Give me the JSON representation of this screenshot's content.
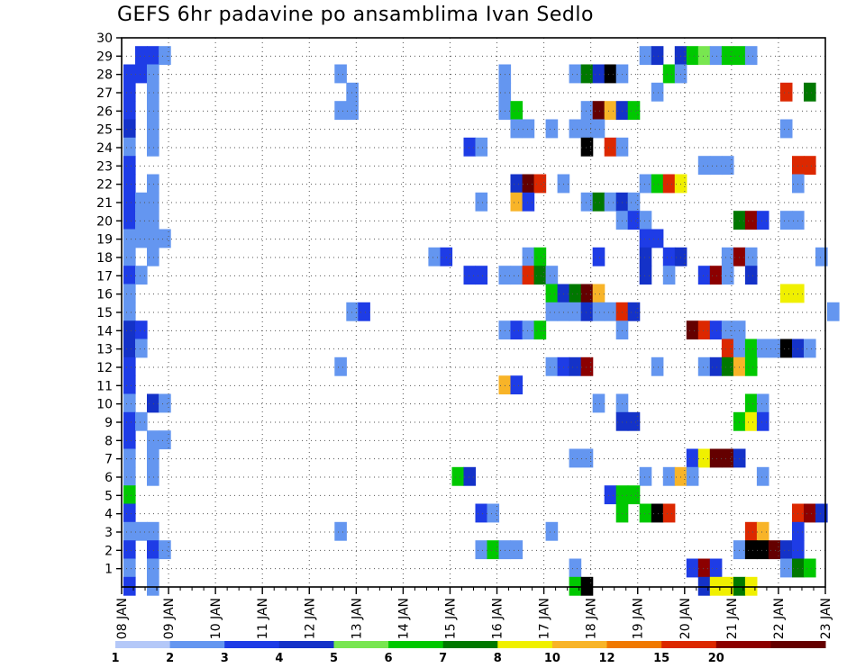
{
  "chart_data": {
    "type": "heatmap",
    "title": "GEFS 6hr padavine po ansamblima Ivan Sedlo",
    "x_tick_labels": [
      "08 JAN",
      "09 JAN",
      "10 JAN",
      "11 JAN",
      "12 JAN",
      "13 JAN",
      "14 JAN",
      "15 JAN",
      "16 JAN",
      "17 JAN",
      "18 JAN",
      "19 JAN",
      "20 JAN",
      "21 JAN",
      "22 JAN",
      "23 JAN"
    ],
    "y_tick_labels": [
      "1",
      "2",
      "3",
      "4",
      "5",
      "6",
      "7",
      "8",
      "9",
      "10",
      "11",
      "12",
      "13",
      "14",
      "15",
      "16",
      "17",
      "18",
      "19",
      "20",
      "21",
      "22",
      "23",
      "24",
      "25",
      "26",
      "27",
      "28",
      "29",
      "30"
    ],
    "ylim": [
      0,
      30
    ],
    "grid": "dotted",
    "colorbar": {
      "labels": [
        "1",
        "2",
        "3",
        "4",
        "5",
        "6",
        "7",
        "8",
        "10",
        "12",
        "15",
        "20"
      ],
      "colors": [
        "#b4c8f8",
        "#6496f0",
        "#1e3ce6",
        "#1432c8",
        "#78e650",
        "#00c800",
        "#007800",
        "#f0f000",
        "#f8b428",
        "#f07800",
        "#dc2800",
        "#8c0000",
        "#640000"
      ]
    },
    "x_unit": "days since 08 JAN 00Z (6-hourly steps)",
    "cells": [
      [
        30,
        8.25,
        2
      ],
      [
        30,
        8.5,
        2
      ],
      [
        30,
        8.75,
        1
      ],
      [
        30,
        19.0,
        1
      ],
      [
        30,
        19.25,
        3
      ],
      [
        30,
        19.75,
        3
      ],
      [
        30,
        20.0,
        5
      ],
      [
        30,
        20.25,
        4
      ],
      [
        30,
        20.5,
        1
      ],
      [
        30,
        20.75,
        5
      ],
      [
        30,
        21.0,
        5
      ],
      [
        30,
        21.25,
        1
      ],
      [
        29,
        8.0,
        2
      ],
      [
        29,
        8.25,
        2
      ],
      [
        29,
        8.5,
        1
      ],
      [
        29,
        12.5,
        1
      ],
      [
        29,
        16.0,
        1
      ],
      [
        29,
        17.5,
        1
      ],
      [
        29,
        17.75,
        6
      ],
      [
        29,
        18.0,
        3
      ],
      [
        29,
        18.25,
        13
      ],
      [
        29,
        18.5,
        1
      ],
      [
        29,
        19.5,
        5
      ],
      [
        29,
        19.75,
        1
      ],
      [
        28,
        8.0,
        2
      ],
      [
        28,
        8.5,
        1
      ],
      [
        28,
        12.75,
        1
      ],
      [
        28,
        16.0,
        1
      ],
      [
        28,
        19.25,
        1
      ],
      [
        28,
        22.0,
        10
      ],
      [
        28,
        22.5,
        6
      ],
      [
        27,
        8.0,
        2
      ],
      [
        27,
        8.5,
        1
      ],
      [
        27,
        12.5,
        1
      ],
      [
        27,
        12.75,
        1
      ],
      [
        27,
        16.0,
        1
      ],
      [
        27,
        16.25,
        5
      ],
      [
        27,
        17.75,
        1
      ],
      [
        27,
        18.0,
        12
      ],
      [
        27,
        18.25,
        8
      ],
      [
        27,
        18.5,
        3
      ],
      [
        27,
        18.75,
        5
      ],
      [
        26,
        8.0,
        3
      ],
      [
        26,
        8.5,
        1
      ],
      [
        26,
        16.25,
        1
      ],
      [
        26,
        16.5,
        1
      ],
      [
        26,
        17.0,
        1
      ],
      [
        26,
        17.5,
        1
      ],
      [
        26,
        17.75,
        1
      ],
      [
        26,
        18.0,
        1
      ],
      [
        26,
        22.0,
        1
      ],
      [
        25,
        8.0,
        1
      ],
      [
        25,
        8.5,
        1
      ],
      [
        25,
        15.25,
        2
      ],
      [
        25,
        15.5,
        1
      ],
      [
        25,
        17.75,
        13
      ],
      [
        25,
        18.25,
        10
      ],
      [
        25,
        18.5,
        1
      ],
      [
        24,
        8.0,
        2
      ],
      [
        24,
        20.25,
        1
      ],
      [
        24,
        20.5,
        1
      ],
      [
        24,
        20.75,
        1
      ],
      [
        24,
        22.25,
        10
      ],
      [
        24,
        22.5,
        10
      ],
      [
        23,
        8.0,
        2
      ],
      [
        23,
        8.5,
        1
      ],
      [
        23,
        16.25,
        3
      ],
      [
        23,
        16.5,
        12
      ],
      [
        23,
        16.75,
        10
      ],
      [
        23,
        17.25,
        1
      ],
      [
        23,
        19.0,
        1
      ],
      [
        23,
        19.25,
        5
      ],
      [
        23,
        19.5,
        10
      ],
      [
        23,
        19.75,
        7
      ],
      [
        23,
        22.25,
        1
      ],
      [
        22,
        8.0,
        2
      ],
      [
        22,
        8.25,
        1
      ],
      [
        22,
        8.5,
        1
      ],
      [
        22,
        15.5,
        1
      ],
      [
        22,
        16.25,
        8
      ],
      [
        22,
        16.5,
        2
      ],
      [
        22,
        17.75,
        1
      ],
      [
        22,
        18.0,
        6
      ],
      [
        22,
        18.25,
        1
      ],
      [
        22,
        18.5,
        3
      ],
      [
        22,
        18.75,
        1
      ],
      [
        21,
        8.0,
        2
      ],
      [
        21,
        8.25,
        1
      ],
      [
        21,
        8.5,
        1
      ],
      [
        21,
        18.5,
        1
      ],
      [
        21,
        18.75,
        2
      ],
      [
        21,
        19.0,
        1
      ],
      [
        21,
        21.0,
        6
      ],
      [
        21,
        21.25,
        11
      ],
      [
        21,
        21.5,
        2
      ],
      [
        21,
        22.0,
        1
      ],
      [
        21,
        22.25,
        1
      ],
      [
        20,
        8.0,
        1
      ],
      [
        20,
        8.25,
        1
      ],
      [
        20,
        8.5,
        1
      ],
      [
        20,
        8.75,
        1
      ],
      [
        20,
        19.0,
        2
      ],
      [
        20,
        19.25,
        2
      ],
      [
        19,
        8.0,
        1
      ],
      [
        19,
        8.5,
        1
      ],
      [
        19,
        14.5,
        1
      ],
      [
        19,
        14.75,
        2
      ],
      [
        19,
        16.5,
        1
      ],
      [
        19,
        16.75,
        5
      ],
      [
        19,
        18.0,
        2
      ],
      [
        19,
        19.0,
        3
      ],
      [
        19,
        19.5,
        2
      ],
      [
        19,
        19.75,
        3
      ],
      [
        19,
        20.75,
        1
      ],
      [
        19,
        21.0,
        11
      ],
      [
        19,
        21.25,
        1
      ],
      [
        19,
        22.75,
        1
      ],
      [
        18,
        8.0,
        2
      ],
      [
        18,
        8.25,
        1
      ],
      [
        18,
        15.25,
        2
      ],
      [
        18,
        15.5,
        2
      ],
      [
        18,
        16.0,
        1
      ],
      [
        18,
        16.25,
        1
      ],
      [
        18,
        16.5,
        10
      ],
      [
        18,
        16.75,
        6
      ],
      [
        18,
        17.0,
        1
      ],
      [
        18,
        19.0,
        3
      ],
      [
        18,
        19.5,
        1
      ],
      [
        18,
        20.25,
        2
      ],
      [
        18,
        20.5,
        11
      ],
      [
        18,
        20.75,
        1
      ],
      [
        18,
        21.25,
        3
      ],
      [
        17,
        8.0,
        1
      ],
      [
        17,
        17.0,
        5
      ],
      [
        17,
        17.25,
        3
      ],
      [
        17,
        17.5,
        6
      ],
      [
        17,
        17.75,
        12
      ],
      [
        17,
        18.0,
        8
      ],
      [
        17,
        22.0,
        7
      ],
      [
        17,
        22.25,
        7
      ],
      [
        16,
        8.0,
        1
      ],
      [
        16,
        12.75,
        1
      ],
      [
        16,
        13.0,
        2
      ],
      [
        16,
        17.0,
        1
      ],
      [
        16,
        17.25,
        1
      ],
      [
        16,
        17.5,
        1
      ],
      [
        16,
        17.75,
        3
      ],
      [
        16,
        18.0,
        1
      ],
      [
        16,
        18.25,
        1
      ],
      [
        16,
        18.5,
        10
      ],
      [
        16,
        18.75,
        3
      ],
      [
        16,
        23.0,
        1
      ],
      [
        15,
        8.0,
        3
      ],
      [
        15,
        8.25,
        2
      ],
      [
        15,
        16.0,
        1
      ],
      [
        15,
        16.25,
        2
      ],
      [
        15,
        16.5,
        1
      ],
      [
        15,
        16.75,
        5
      ],
      [
        15,
        18.5,
        1
      ],
      [
        15,
        20.0,
        12
      ],
      [
        15,
        20.25,
        10
      ],
      [
        15,
        20.5,
        2
      ],
      [
        15,
        20.75,
        1
      ],
      [
        15,
        21.0,
        1
      ],
      [
        14,
        8.0,
        3
      ],
      [
        14,
        8.25,
        1
      ],
      [
        14,
        20.75,
        10
      ],
      [
        14,
        21.0,
        1
      ],
      [
        14,
        21.25,
        5
      ],
      [
        14,
        21.5,
        1
      ],
      [
        14,
        21.75,
        1
      ],
      [
        14,
        22.0,
        13
      ],
      [
        14,
        22.25,
        3
      ],
      [
        14,
        22.5,
        1
      ],
      [
        13,
        8.0,
        2
      ],
      [
        13,
        12.5,
        1
      ],
      [
        13,
        17.0,
        1
      ],
      [
        13,
        17.25,
        2
      ],
      [
        13,
        17.5,
        3
      ],
      [
        13,
        17.75,
        11
      ],
      [
        13,
        19.25,
        1
      ],
      [
        13,
        20.25,
        1
      ],
      [
        13,
        20.5,
        3
      ],
      [
        13,
        20.75,
        6
      ],
      [
        13,
        21.0,
        8
      ],
      [
        13,
        21.25,
        5
      ],
      [
        12,
        8.0,
        2
      ],
      [
        12,
        16.0,
        8
      ],
      [
        12,
        16.25,
        2
      ],
      [
        11,
        8.0,
        1
      ],
      [
        11,
        8.5,
        3
      ],
      [
        11,
        8.75,
        1
      ],
      [
        11,
        18.0,
        1
      ],
      [
        11,
        18.5,
        1
      ],
      [
        11,
        21.25,
        5
      ],
      [
        11,
        21.5,
        1
      ],
      [
        10,
        8.0,
        2
      ],
      [
        10,
        8.25,
        1
      ],
      [
        10,
        18.5,
        3
      ],
      [
        10,
        18.75,
        3
      ],
      [
        10,
        21.0,
        5
      ],
      [
        10,
        21.25,
        7
      ],
      [
        10,
        21.5,
        2
      ],
      [
        9,
        8.0,
        2
      ],
      [
        9,
        8.5,
        1
      ],
      [
        9,
        8.75,
        1
      ],
      [
        8,
        8.0,
        1
      ],
      [
        8,
        8.5,
        1
      ],
      [
        8,
        17.5,
        1
      ],
      [
        8,
        17.75,
        1
      ],
      [
        8,
        20.0,
        2
      ],
      [
        8,
        20.25,
        7
      ],
      [
        8,
        20.5,
        12
      ],
      [
        8,
        20.75,
        12
      ],
      [
        8,
        21.0,
        3
      ],
      [
        7,
        8.0,
        1
      ],
      [
        7,
        8.5,
        1
      ],
      [
        7,
        15.0,
        5
      ],
      [
        7,
        15.25,
        3
      ],
      [
        7,
        19.0,
        1
      ],
      [
        7,
        19.5,
        1
      ],
      [
        7,
        19.75,
        8
      ],
      [
        7,
        20.0,
        1
      ],
      [
        7,
        21.5,
        1
      ],
      [
        6,
        8.0,
        5
      ],
      [
        6,
        18.25,
        2
      ],
      [
        6,
        18.5,
        5
      ],
      [
        6,
        18.75,
        5
      ],
      [
        5,
        8.0,
        2
      ],
      [
        5,
        15.5,
        2
      ],
      [
        5,
        15.75,
        1
      ],
      [
        5,
        18.5,
        5
      ],
      [
        5,
        19.0,
        5
      ],
      [
        5,
        19.25,
        13
      ],
      [
        5,
        19.5,
        10
      ],
      [
        5,
        22.25,
        10
      ],
      [
        5,
        22.5,
        11
      ],
      [
        5,
        22.75,
        3
      ],
      [
        4,
        8.0,
        1
      ],
      [
        4,
        8.25,
        1
      ],
      [
        4,
        8.5,
        1
      ],
      [
        4,
        12.5,
        1
      ],
      [
        4,
        17.0,
        1
      ],
      [
        4,
        21.25,
        10
      ],
      [
        4,
        21.5,
        8
      ],
      [
        4,
        22.25,
        2
      ],
      [
        3,
        8.0,
        2
      ],
      [
        3,
        8.5,
        2
      ],
      [
        3,
        8.75,
        1
      ],
      [
        3,
        15.5,
        1
      ],
      [
        3,
        15.75,
        5
      ],
      [
        3,
        16.0,
        1
      ],
      [
        3,
        16.25,
        1
      ],
      [
        3,
        21.0,
        1
      ],
      [
        3,
        21.25,
        13
      ],
      [
        3,
        21.5,
        13
      ],
      [
        3,
        21.75,
        12
      ],
      [
        3,
        22.0,
        3
      ],
      [
        3,
        22.25,
        2
      ],
      [
        2,
        8.0,
        1
      ],
      [
        2,
        8.5,
        1
      ],
      [
        2,
        17.5,
        1
      ],
      [
        2,
        20.0,
        2
      ],
      [
        2,
        20.25,
        11
      ],
      [
        2,
        20.5,
        2
      ],
      [
        2,
        22.0,
        1
      ],
      [
        2,
        22.25,
        6
      ],
      [
        2,
        22.5,
        5
      ],
      [
        1,
        8.0,
        2
      ],
      [
        1,
        8.5,
        1
      ],
      [
        1,
        17.5,
        5
      ],
      [
        1,
        17.75,
        13
      ],
      [
        1,
        20.25,
        3
      ],
      [
        1,
        20.5,
        7
      ],
      [
        1,
        20.75,
        7
      ],
      [
        1,
        21.0,
        6
      ],
      [
        1,
        21.25,
        7
      ]
    ]
  }
}
